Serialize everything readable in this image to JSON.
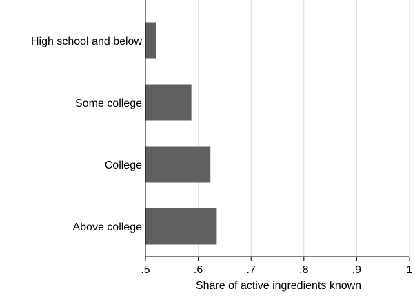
{
  "chart_data": {
    "type": "bar",
    "orientation": "horizontal",
    "title": "",
    "xlabel": "Share of active ingredients known",
    "ylabel": "",
    "categories": [
      "High school and below",
      "Some college",
      "College",
      "Above college"
    ],
    "values": [
      0.52,
      0.587,
      0.623,
      0.635
    ],
    "xlim": [
      0.5,
      1.0
    ],
    "xticks": [
      0.5,
      0.6,
      0.7,
      0.8,
      0.9,
      1.0
    ],
    "xtick_labels": [
      ".5",
      ".6",
      ".7",
      ".8",
      ".9",
      "1"
    ],
    "grid": "vertical",
    "legend": "none",
    "colors": {
      "bar": "#606060",
      "grid": "#dcdcdc",
      "axis": "#000000",
      "background": "#ffffff"
    }
  }
}
